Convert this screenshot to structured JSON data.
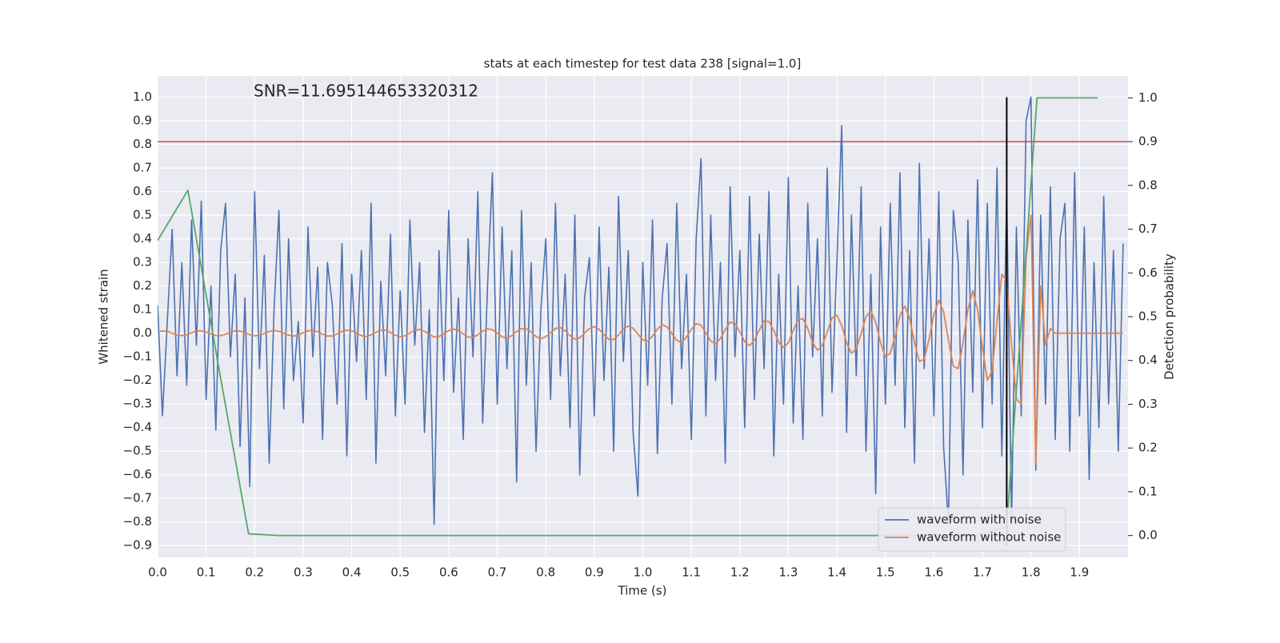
{
  "chart_data": {
    "type": "line",
    "title": "stats at each timestep for test data 238 [signal=1.0]",
    "xlabel": "Time (s)",
    "ylabel": "Whitened strain",
    "y2label": "Detection probability",
    "annotation": "SNR=11.695144653320312",
    "legend": "lower right",
    "grid": true,
    "background": "#eaeaf2",
    "xlim": [
      0,
      2.0
    ],
    "ylim": [
      -0.95,
      1.09
    ],
    "y2lim": [
      -0.05,
      1.05
    ],
    "xticks": [
      {
        "value": 0,
        "label": "0.0"
      },
      0.1,
      0.2,
      0.3,
      0.4,
      0.5,
      0.6,
      0.7,
      0.8,
      0.9,
      {
        "value": 1,
        "label": "1.0"
      },
      1.1,
      1.2,
      1.3,
      1.4,
      1.5,
      1.6,
      1.7,
      1.8,
      1.9
    ],
    "yticks": [
      {
        "value": 1,
        "label": "1.0"
      },
      0.9,
      0.8,
      0.7,
      0.6,
      0.5,
      0.4,
      0.3,
      0.2,
      0.1,
      {
        "value": 0,
        "label": "0.0"
      },
      {
        "value": -0.1,
        "label": "−0.1"
      },
      {
        "value": -0.2,
        "label": "−0.2"
      },
      {
        "value": -0.3,
        "label": "−0.3"
      },
      {
        "value": -0.4,
        "label": "−0.4"
      },
      {
        "value": -0.5,
        "label": "−0.5"
      },
      {
        "value": -0.6,
        "label": "−0.6"
      },
      {
        "value": -0.7,
        "label": "−0.7"
      },
      {
        "value": -0.8,
        "label": "−0.8"
      },
      {
        "value": -0.9,
        "label": "−0.9"
      }
    ],
    "y2ticks": [
      {
        "value": 1,
        "label": "1.0"
      },
      0.9,
      0.8,
      0.7,
      0.6,
      0.5,
      0.4,
      0.3,
      0.2,
      0.1,
      {
        "value": 0,
        "label": "0.0"
      }
    ],
    "x": [
      0,
      0.01,
      0.02,
      0.03,
      0.04,
      0.05,
      0.06,
      0.07,
      0.08,
      0.09,
      0.1,
      0.11,
      0.12,
      0.13,
      0.14,
      0.15,
      0.16,
      0.17,
      0.18,
      0.19,
      0.2,
      0.21,
      0.22,
      0.23,
      0.24,
      0.25,
      0.26,
      0.27,
      0.28,
      0.29,
      0.3,
      0.31,
      0.32,
      0.33,
      0.34,
      0.35,
      0.36,
      0.37,
      0.38,
      0.39,
      0.4,
      0.41,
      0.42,
      0.43,
      0.44,
      0.45,
      0.46,
      0.47,
      0.48,
      0.49,
      0.5,
      0.51,
      0.52,
      0.53,
      0.54,
      0.55,
      0.56,
      0.57,
      0.58,
      0.59,
      0.6,
      0.61,
      0.62,
      0.63,
      0.64,
      0.65,
      0.66,
      0.67,
      0.68,
      0.69,
      0.7,
      0.71,
      0.72,
      0.73,
      0.74,
      0.75,
      0.76,
      0.77,
      0.78,
      0.79,
      0.8,
      0.81,
      0.82,
      0.83,
      0.84,
      0.85,
      0.86,
      0.87,
      0.88,
      0.89,
      0.9,
      0.91,
      0.92,
      0.93,
      0.94,
      0.95,
      0.96,
      0.97,
      0.98,
      0.99,
      1.0,
      1.01,
      1.02,
      1.03,
      1.04,
      1.05,
      1.06,
      1.07,
      1.08,
      1.09,
      1.1,
      1.11,
      1.12,
      1.13,
      1.14,
      1.15,
      1.16,
      1.17,
      1.18,
      1.19,
      1.2,
      1.21,
      1.22,
      1.23,
      1.24,
      1.25,
      1.26,
      1.27,
      1.28,
      1.29,
      1.3,
      1.31,
      1.32,
      1.33,
      1.34,
      1.35,
      1.36,
      1.37,
      1.38,
      1.39,
      1.4,
      1.41,
      1.42,
      1.43,
      1.44,
      1.45,
      1.46,
      1.47,
      1.48,
      1.49,
      1.5,
      1.51,
      1.52,
      1.53,
      1.54,
      1.55,
      1.56,
      1.57,
      1.58,
      1.59,
      1.6,
      1.61,
      1.62,
      1.63,
      1.64,
      1.65,
      1.66,
      1.67,
      1.68,
      1.69,
      1.7,
      1.71,
      1.72,
      1.73,
      1.74,
      1.75,
      1.76,
      1.77,
      1.78,
      1.79,
      1.8,
      1.81,
      1.82,
      1.83,
      1.84,
      1.85,
      1.86,
      1.87,
      1.88,
      1.89,
      1.9,
      1.91,
      1.92,
      1.93,
      1.94,
      1.95,
      1.96,
      1.97,
      1.98,
      1.99
    ],
    "series": [
      {
        "name": "waveform with noise",
        "color": "#4c72b0",
        "values": [
          0.12,
          -0.35,
          0.05,
          0.44,
          -0.18,
          0.3,
          -0.22,
          0.48,
          -0.05,
          0.56,
          -0.28,
          0.2,
          -0.41,
          0.35,
          0.55,
          -0.1,
          0.25,
          -0.48,
          0.15,
          -0.65,
          0.6,
          -0.15,
          0.33,
          -0.55,
          0.1,
          0.52,
          -0.32,
          0.4,
          -0.2,
          0.05,
          -0.38,
          0.45,
          -0.1,
          0.28,
          -0.45,
          0.3,
          0.12,
          -0.3,
          0.38,
          -0.52,
          0.25,
          -0.12,
          0.35,
          -0.28,
          0.55,
          -0.55,
          0.22,
          -0.18,
          0.42,
          -0.35,
          0.18,
          -0.3,
          0.48,
          -0.05,
          0.3,
          -0.42,
          0.1,
          -0.81,
          0.35,
          -0.2,
          0.52,
          -0.25,
          0.15,
          -0.45,
          0.4,
          -0.1,
          0.6,
          -0.38,
          0.2,
          0.68,
          -0.3,
          0.45,
          -0.15,
          0.35,
          -0.63,
          0.52,
          -0.22,
          0.3,
          -0.5,
          0.1,
          0.4,
          -0.28,
          0.55,
          -0.18,
          0.25,
          -0.4,
          0.5,
          -0.6,
          0.15,
          0.32,
          -0.35,
          0.45,
          -0.2,
          0.28,
          -0.5,
          0.58,
          -0.12,
          0.35,
          -0.42,
          -0.69,
          0.3,
          -0.22,
          0.48,
          -0.51,
          0.15,
          0.38,
          -0.3,
          0.55,
          -0.15,
          0.25,
          -0.45,
          0.4,
          0.74,
          -0.35,
          0.5,
          -0.2,
          0.3,
          -0.55,
          0.62,
          -0.1,
          0.35,
          -0.4,
          0.58,
          -0.28,
          0.42,
          -0.15,
          0.6,
          -0.52,
          0.25,
          -0.3,
          0.66,
          -0.38,
          0.2,
          -0.45,
          0.55,
          -0.1,
          0.4,
          -0.35,
          0.7,
          -0.25,
          0.3,
          0.88,
          -0.42,
          0.5,
          -0.18,
          0.62,
          -0.5,
          0.25,
          -0.68,
          0.45,
          -0.3,
          0.55,
          -0.22,
          0.68,
          -0.4,
          0.35,
          -0.55,
          0.72,
          -0.15,
          0.4,
          -0.35,
          0.6,
          -0.48,
          -0.81,
          0.52,
          0.3,
          -0.6,
          0.48,
          -0.25,
          0.65,
          -0.4,
          0.55,
          -0.3,
          0.7,
          -0.52,
          0.6,
          -0.8,
          0.45,
          -0.35,
          0.9,
          1.0,
          -0.58,
          0.5,
          -0.3,
          0.62,
          -0.45,
          0.4,
          0.55,
          -0.5,
          0.68,
          -0.35,
          0.45,
          -0.62,
          0.3,
          -0.4,
          0.58,
          -0.3,
          0.35,
          -0.5,
          0.38
        ]
      },
      {
        "name": "waveform without noise",
        "color": "#dd8452",
        "values": [
          0.005,
          0.01,
          0.008,
          0.0,
          -0.008,
          -0.01,
          -0.006,
          0.002,
          0.009,
          0.01,
          0.005,
          -0.003,
          -0.01,
          -0.01,
          -0.004,
          0.004,
          0.01,
          0.009,
          0.002,
          -0.006,
          -0.011,
          -0.009,
          -0.001,
          0.007,
          0.011,
          0.008,
          0.0,
          -0.008,
          -0.012,
          -0.007,
          0.002,
          0.01,
          0.012,
          0.006,
          -0.004,
          -0.012,
          -0.012,
          -0.003,
          0.007,
          0.013,
          0.01,
          0.0,
          -0.01,
          -0.014,
          -0.007,
          0.004,
          0.013,
          0.013,
          0.003,
          -0.008,
          -0.015,
          -0.011,
          0.001,
          0.012,
          0.016,
          0.008,
          -0.005,
          -0.016,
          -0.014,
          -0.002,
          0.011,
          0.018,
          0.011,
          -0.003,
          -0.016,
          -0.018,
          -0.006,
          0.009,
          0.019,
          0.015,
          0.0,
          -0.015,
          -0.021,
          -0.01,
          0.007,
          0.02,
          0.019,
          0.004,
          -0.014,
          -0.023,
          -0.015,
          0.003,
          0.02,
          0.024,
          0.01,
          -0.01,
          -0.025,
          -0.02,
          0.0,
          0.02,
          0.028,
          0.016,
          -0.006,
          -0.026,
          -0.027,
          -0.007,
          0.018,
          0.031,
          0.021,
          -0.004,
          -0.028,
          -0.033,
          -0.012,
          0.017,
          0.036,
          0.027,
          -0.002,
          -0.03,
          -0.039,
          -0.016,
          0.016,
          0.041,
          0.034,
          0.002,
          -0.033,
          -0.045,
          -0.022,
          0.015,
          0.047,
          0.041,
          0.006,
          -0.036,
          -0.053,
          -0.03,
          0.013,
          0.052,
          0.05,
          0.012,
          -0.038,
          -0.061,
          -0.04,
          0.01,
          0.058,
          0.062,
          0.02,
          -0.04,
          -0.072,
          -0.052,
          0.005,
          0.064,
          0.077,
          0.032,
          -0.04,
          -0.085,
          -0.066,
          -0.002,
          0.07,
          0.095,
          0.046,
          -0.04,
          -0.1,
          -0.085,
          -0.012,
          0.076,
          0.115,
          0.064,
          -0.04,
          -0.12,
          -0.11,
          -0.025,
          0.08,
          0.14,
          0.09,
          -0.03,
          -0.14,
          -0.15,
          -0.04,
          0.1,
          0.18,
          0.1,
          -0.06,
          -0.2,
          -0.16,
          0.05,
          0.25,
          0.22,
          -0.05,
          -0.28,
          -0.3,
          0.32,
          0.5,
          -0.55,
          0.2,
          -0.05,
          0.02,
          0.0,
          0.0,
          0.0,
          0.0,
          0.0,
          0.0,
          0.0,
          0.0,
          0.0,
          0.0,
          0.0,
          0.0,
          0.0,
          0.0,
          0.0
        ]
      },
      {
        "color": "#55a868",
        "axis": "y2",
        "x": [
          0,
          0.0625,
          0.125,
          0.1875,
          0.25,
          0.3125,
          0.375,
          0.4375,
          0.5,
          0.5625,
          0.625,
          0.6875,
          0.75,
          0.8125,
          0.875,
          0.9375,
          1.0,
          1.0625,
          1.125,
          1.1875,
          1.25,
          1.3125,
          1.375,
          1.4375,
          1.5,
          1.5625,
          1.625,
          1.6875,
          1.75,
          1.8125,
          1.875,
          1.9375
        ],
        "values": [
          0.674,
          0.789,
          0.39,
          0.004,
          0.0,
          0.0,
          0.0,
          0.0,
          0.0,
          0.0,
          0.0,
          0.0,
          0.0,
          0.0,
          0.0,
          0.0,
          0.0,
          0.0,
          0.0,
          0.0,
          0.0,
          0.0,
          0.0,
          0.0,
          0.0,
          0.0,
          0.0,
          0.0,
          0.02,
          1.0,
          1.0,
          1.0
        ]
      }
    ],
    "hlines": [
      {
        "y": 0.9,
        "axis": "y2",
        "color": "#c44e52"
      }
    ],
    "vlines": [
      {
        "x": 1.75,
        "ymin": -0.9,
        "ymax": 1.0,
        "color": "#000000"
      }
    ]
  }
}
